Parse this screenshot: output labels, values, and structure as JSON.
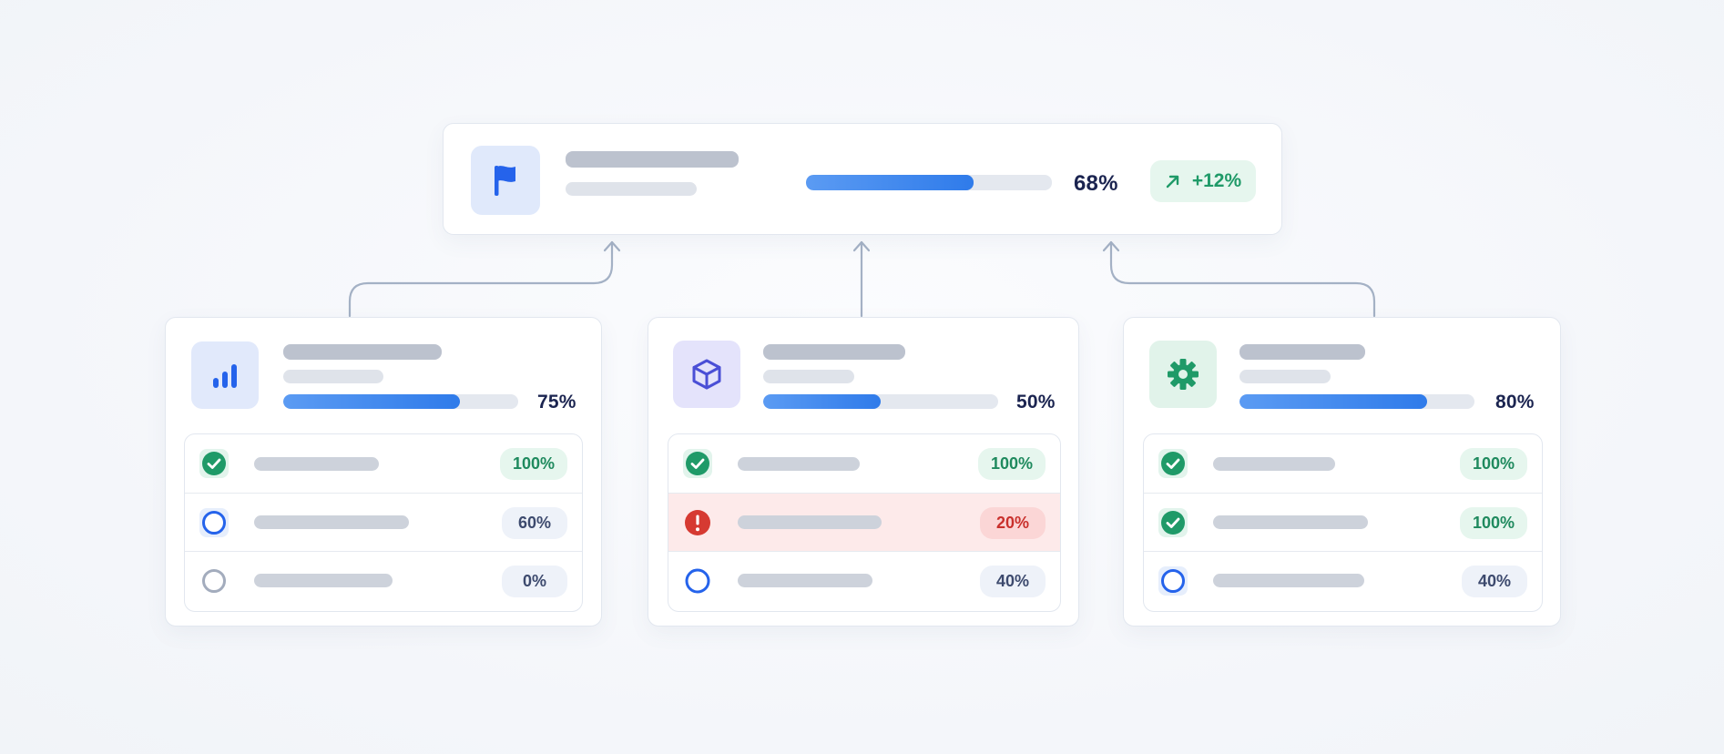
{
  "top": {
    "progress": 0.68,
    "percent": "68%",
    "trend": "+12%",
    "icon": "flag-icon"
  },
  "modules": [
    {
      "icon": "bar-chart-icon",
      "progress": 0.75,
      "percent": "75%",
      "rows": [
        {
          "status": "complete",
          "progress": 1.0,
          "badge": "100%"
        },
        {
          "status": "in-progress",
          "progress": 0.6,
          "badge": "60%"
        },
        {
          "status": "not-started",
          "progress": 0.0,
          "badge": "0%"
        }
      ]
    },
    {
      "icon": "cube-icon",
      "progress": 0.5,
      "percent": "50%",
      "rows": [
        {
          "status": "complete",
          "progress": 1.0,
          "badge": "100%"
        },
        {
          "status": "error",
          "progress": 0.2,
          "badge": "20%"
        },
        {
          "status": "in-progress",
          "progress": 0.4,
          "badge": "40%"
        }
      ]
    },
    {
      "icon": "gear-icon",
      "progress": 0.8,
      "percent": "80%",
      "rows": [
        {
          "status": "complete",
          "progress": 1.0,
          "badge": "100%"
        },
        {
          "status": "complete",
          "progress": 1.0,
          "badge": "100%"
        },
        {
          "status": "in-progress",
          "progress": 0.4,
          "badge": "40%"
        }
      ]
    }
  ],
  "colors": {
    "accent": "#2f7bea",
    "success": "#1f9a68",
    "danger": "#d63a32",
    "indigo": "#4a4fd6",
    "connector": "#a4b1c5"
  }
}
